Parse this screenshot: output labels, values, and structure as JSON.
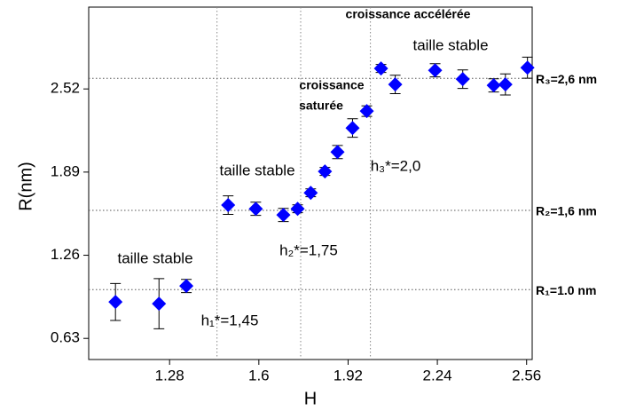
{
  "chart_data": {
    "type": "scatter",
    "x_label": "H",
    "y_label": "R(nm)",
    "xlim": [
      0.99,
      2.58
    ],
    "ylim": [
      0.47,
      3.14
    ],
    "xticks": [
      1.28,
      1.6,
      1.92,
      2.24,
      2.56
    ],
    "yticks": [
      0.63,
      1.26,
      1.89,
      2.52
    ],
    "series": [
      {
        "color": "#0000ff",
        "x": [
          1.086,
          1.242,
          1.34,
          1.49,
          1.589,
          1.688,
          1.739,
          1.786,
          1.837,
          1.882,
          1.936,
          1.987,
          2.038,
          2.089,
          2.232,
          2.331,
          2.442,
          2.484,
          2.563
        ],
        "values": [
          0.906,
          0.893,
          1.027,
          1.64,
          1.612,
          1.565,
          1.612,
          1.733,
          1.895,
          2.042,
          2.224,
          2.352,
          2.675,
          2.554,
          2.661,
          2.594,
          2.547,
          2.554,
          2.681
        ],
        "errors": [
          0.14,
          0.19,
          0.05,
          0.07,
          0.05,
          0.05,
          0.03,
          0.03,
          0.03,
          0.05,
          0.07,
          0.04,
          0.03,
          0.07,
          0.05,
          0.07,
          0.05,
          0.08,
          0.08
        ]
      }
    ],
    "vlines": [
      1.45,
      1.75,
      2.0
    ],
    "hlines": [
      2.6,
      1.6,
      1.0
    ],
    "hline_labels": [
      "R₃=2,6 nm",
      "R₂=1,6 nm",
      "R₁=1.0 nm"
    ],
    "annotations": [
      "croissance accélérée",
      "taille stable",
      "croissance",
      "saturée",
      "taille stable",
      "taille stable",
      "h₃*=2,0",
      "h₂*=1,75",
      "h₁*=1,45"
    ]
  }
}
